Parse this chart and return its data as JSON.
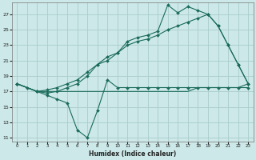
{
  "xlabel": "Humidex (Indice chaleur)",
  "bg_color": "#cce8e8",
  "grid_color": "#aacccc",
  "line_color": "#1a6b5a",
  "xlim": [
    -0.5,
    23.5
  ],
  "ylim": [
    10.5,
    28.5
  ],
  "xticks": [
    0,
    1,
    2,
    3,
    4,
    5,
    6,
    7,
    8,
    9,
    10,
    11,
    12,
    13,
    14,
    15,
    16,
    17,
    18,
    19,
    20,
    21,
    22,
    23
  ],
  "yticks": [
    11,
    13,
    15,
    17,
    19,
    21,
    23,
    25,
    27
  ],
  "line_zigzag_x": [
    0,
    1,
    2,
    3,
    4,
    5,
    6,
    7,
    8,
    9,
    10,
    11,
    12,
    13,
    14,
    15,
    16,
    17,
    18,
    19,
    20,
    21,
    22,
    23
  ],
  "line_zigzag_y": [
    18.0,
    17.5,
    17.0,
    16.5,
    16.0,
    15.5,
    12.0,
    11.0,
    14.5,
    18.5,
    17.5,
    17.5,
    17.5,
    17.5,
    17.5,
    17.5,
    17.5,
    17.5,
    17.5,
    17.5,
    17.5,
    17.5,
    17.5,
    17.5
  ],
  "line_flat_x": [
    0,
    1,
    2,
    3,
    4,
    5,
    6,
    7,
    8,
    9,
    10,
    11,
    12,
    13,
    14,
    15,
    16,
    17,
    18,
    19,
    20,
    21,
    22,
    23
  ],
  "line_flat_y": [
    18.0,
    17.5,
    17.0,
    17.0,
    17.0,
    17.0,
    17.0,
    17.0,
    17.0,
    17.0,
    17.0,
    17.0,
    17.0,
    17.0,
    17.0,
    17.0,
    17.0,
    17.0,
    17.5,
    17.5,
    17.5,
    17.5,
    17.5,
    18.0
  ],
  "line_diag_x": [
    0,
    2,
    3,
    4,
    5,
    6,
    7,
    8,
    9,
    10,
    11,
    12,
    13,
    14,
    15,
    16,
    17,
    18,
    19,
    20,
    21,
    22,
    23
  ],
  "line_diag_y": [
    18.0,
    17.0,
    17.2,
    17.5,
    18.0,
    18.5,
    19.5,
    20.5,
    21.5,
    22.0,
    23.0,
    23.5,
    23.8,
    24.3,
    25.0,
    25.5,
    26.0,
    26.5,
    27.0,
    25.5,
    23.0,
    20.5,
    18.0
  ],
  "line_peak_x": [
    0,
    2,
    3,
    4,
    5,
    6,
    7,
    8,
    9,
    10,
    11,
    12,
    13,
    14,
    15,
    16,
    17,
    18,
    19,
    20,
    21,
    22,
    23
  ],
  "line_peak_y": [
    18.0,
    17.0,
    16.8,
    17.0,
    17.5,
    18.0,
    19.0,
    20.5,
    21.0,
    22.0,
    23.5,
    24.0,
    24.3,
    24.8,
    28.2,
    27.2,
    28.0,
    27.5,
    27.0,
    25.5,
    23.0,
    20.5,
    18.0
  ]
}
